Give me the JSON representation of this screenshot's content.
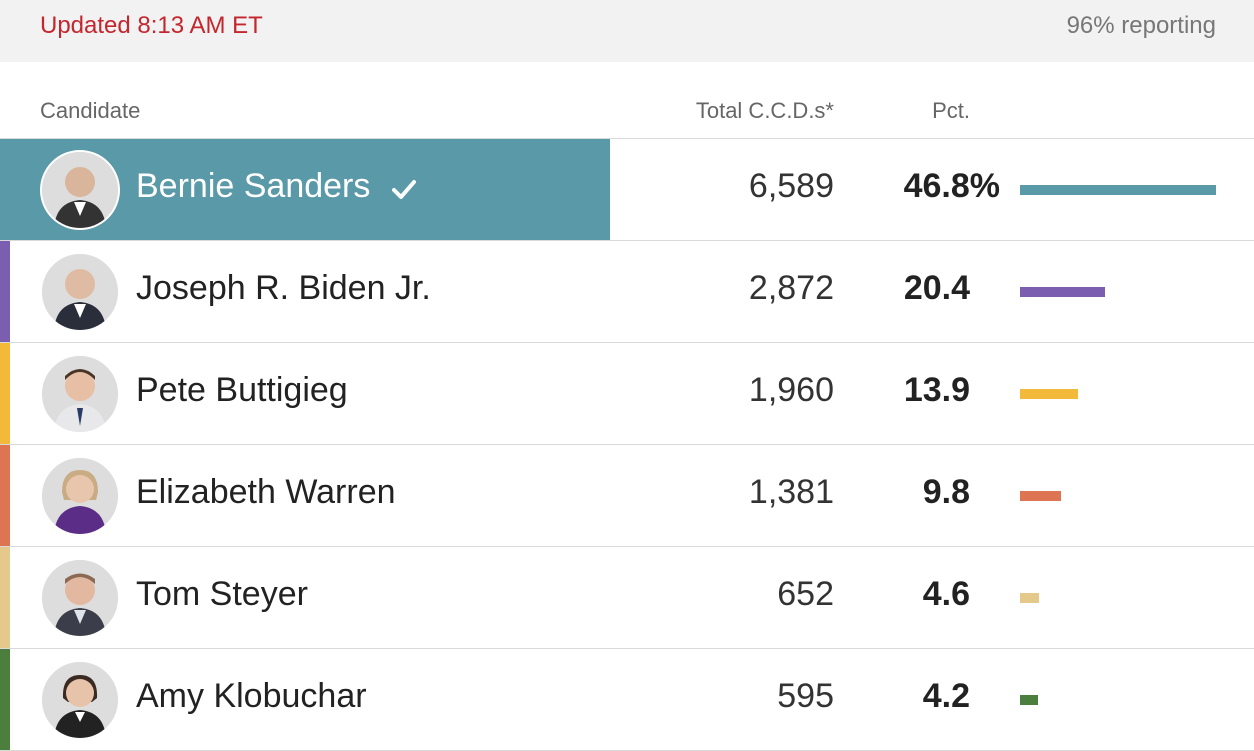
{
  "header": {
    "updated": "Updated 8:13 AM ET",
    "reporting": "96% reporting"
  },
  "columns": {
    "candidate": "Candidate",
    "votes": "Total C.C.D.s*",
    "pct": "Pct."
  },
  "candidates": [
    {
      "name": "Bernie Sanders",
      "votes": "6,589",
      "pct": "46.8%",
      "pct_value": 46.8,
      "color": "#5a99a7",
      "winner": true
    },
    {
      "name": "Joseph R. Biden Jr.",
      "votes": "2,872",
      "pct": "20.4",
      "pct_value": 20.4,
      "color": "#7c5eb0",
      "winner": false
    },
    {
      "name": "Pete Buttigieg",
      "votes": "1,960",
      "pct": "13.9",
      "pct_value": 13.9,
      "color": "#f2b93b",
      "winner": false
    },
    {
      "name": "Elizabeth Warren",
      "votes": "1,381",
      "pct": "9.8",
      "pct_value": 9.8,
      "color": "#dd7553",
      "winner": false
    },
    {
      "name": "Tom Steyer",
      "votes": "652",
      "pct": "4.6",
      "pct_value": 4.6,
      "color": "#e4c98b",
      "winner": false
    },
    {
      "name": "Amy Klobuchar",
      "votes": "595",
      "pct": "4.2",
      "pct_value": 4.2,
      "color": "#4c7f3e",
      "winner": false
    }
  ]
}
